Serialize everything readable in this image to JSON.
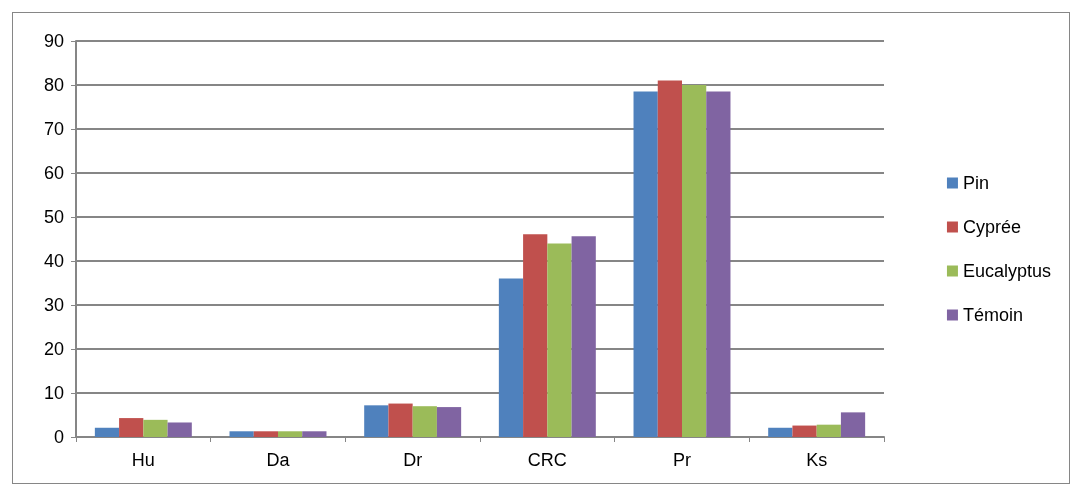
{
  "chart_data": {
    "type": "bar",
    "categories": [
      "Hu",
      "Da",
      "Dr",
      "CRC",
      "Pr",
      "Ks"
    ],
    "series": [
      {
        "name": "Pin",
        "color": "#4f81bd",
        "values": [
          2.1,
          1.3,
          7.2,
          36.0,
          78.5,
          2.1
        ]
      },
      {
        "name": "Cyprée",
        "color": "#c0504d",
        "values": [
          4.3,
          1.3,
          7.6,
          46.1,
          81.0,
          2.6
        ]
      },
      {
        "name": "Eucalyptus",
        "color": "#9bbb59",
        "values": [
          3.9,
          1.3,
          7.0,
          44.0,
          80.0,
          2.8
        ]
      },
      {
        "name": "Témoin",
        "color": "#8064a2",
        "values": [
          3.3,
          1.3,
          6.8,
          45.6,
          78.5,
          5.6
        ]
      }
    ],
    "ylim": [
      0,
      90
    ],
    "yticks": [
      0,
      10,
      20,
      30,
      40,
      50,
      60,
      70,
      80,
      90
    ],
    "grid": "y",
    "legend": "right"
  }
}
